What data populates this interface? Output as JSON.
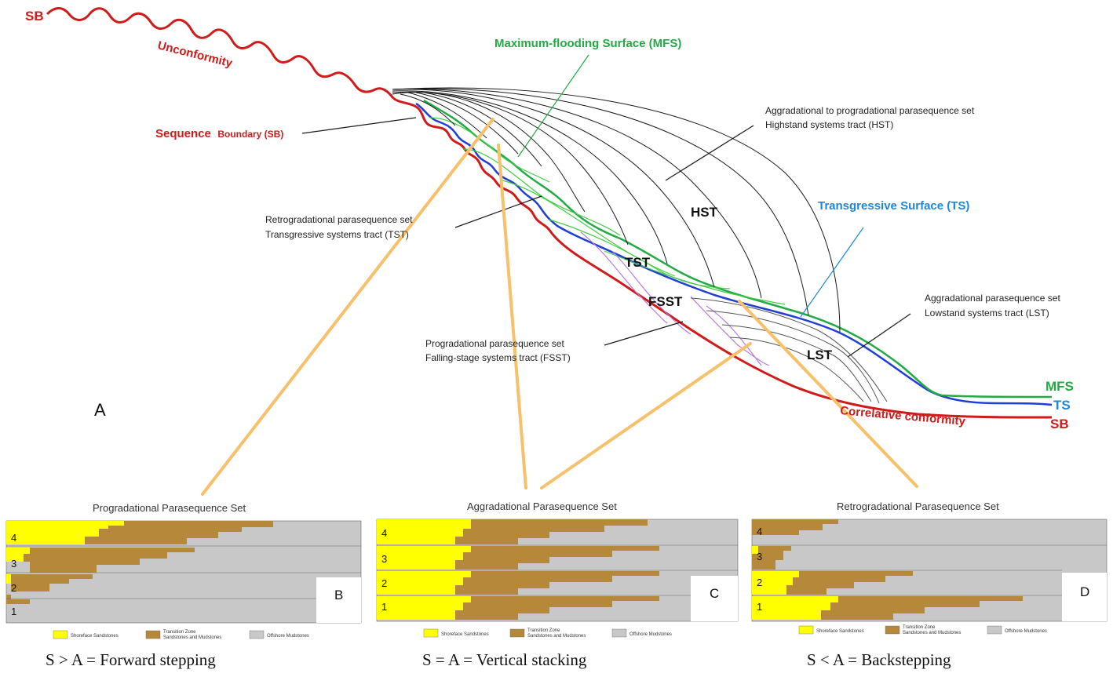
{
  "diagram": {
    "panel_a": {
      "letter": "A",
      "sb_top": "SB",
      "unconformity": "Unconformity",
      "sequence_boundary_main": "Sequence",
      "sequence_boundary_small": "Boundary (SB)",
      "mfs_title": "Maximum-flooding Surface (MFS)",
      "ts_title": "Transgressive Surface (TS)",
      "correlative_conformity": "Correlative conformity",
      "tracts": {
        "hst": "HST",
        "tst": "TST",
        "fsst": "FSST",
        "lst": "LST"
      },
      "annotations": {
        "hst_line1": "Aggradational to progradational parasequence set",
        "hst_line2": "Highstand systems tract (HST)",
        "tst_line1": "Retrogradational parasequence set",
        "tst_line2": "Transgressive systems tract (TST)",
        "fsst_line1": "Progradational parasequence set",
        "fsst_line2": "Falling-stage systems tract (FSST)",
        "lst_line1": "Aggradational parasequence set",
        "lst_line2": "Lowstand systems tract (LST)"
      },
      "right_labels": {
        "mfs": "MFS",
        "ts": "TS",
        "sb": "SB"
      },
      "colors": {
        "sb": "#d11a1a",
        "mfs": "#22aa44",
        "ts": "#1f3fd6",
        "fsst_lines": "#b77be0",
        "arrows": "#f7c06b"
      }
    },
    "panels": [
      {
        "letter": "B",
        "title": "Progradational Parasequence Set",
        "numbers": [
          "4",
          "3",
          "2",
          "1"
        ],
        "caption": "S > A = Forward stepping"
      },
      {
        "letter": "C",
        "title": "Aggradational Parasequence Set",
        "numbers": [
          "4",
          "3",
          "2",
          "1"
        ],
        "caption": "S = A = Vertical stacking"
      },
      {
        "letter": "D",
        "title": "Retrogradational Parasequence Set",
        "numbers": [
          "4",
          "3",
          "2",
          "1"
        ],
        "caption": "S < A = Backstepping"
      }
    ],
    "legend": {
      "shoreface": "Shoreface Sandstones",
      "transition_1": "Transition Zone",
      "transition_2": "Sandstones and Mudstones",
      "offshore": "Offshore Mudstones",
      "colors": {
        "shoreface": "#ffff00",
        "transition": "#b5883a",
        "offshore": "#c8c8c8"
      }
    }
  }
}
